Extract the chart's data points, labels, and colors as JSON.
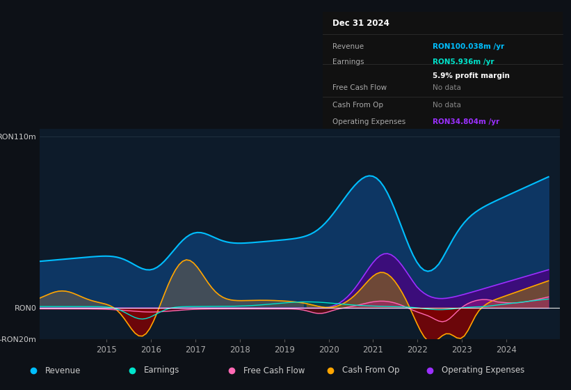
{
  "bg_color": "#0d1117",
  "plot_bg_color": "#0d1b2a",
  "title": "Dec 31 2024",
  "revenue_color": "#00bfff",
  "earnings_color": "#00e5cc",
  "fcf_color": "#ff69b4",
  "cashfromop_color": "#ffa500",
  "opex_color": "#9b30ff",
  "tooltip_bg": "#111111",
  "tooltip_title": "Dec 31 2024",
  "tooltip_rows": [
    {
      "label": "Revenue",
      "value": "RON100.038m /yr",
      "value_color": "#00bfff",
      "dimmed": false
    },
    {
      "label": "Earnings",
      "value": "RON5.936m /yr",
      "value_color": "#00e5cc",
      "dimmed": false
    },
    {
      "label": "",
      "value": "5.9% profit margin",
      "value_color": "#ffffff",
      "dimmed": false
    },
    {
      "label": "Free Cash Flow",
      "value": "No data",
      "value_color": "#888888",
      "dimmed": true
    },
    {
      "label": "Cash From Op",
      "value": "No data",
      "value_color": "#888888",
      "dimmed": true
    },
    {
      "label": "Operating Expenses",
      "value": "RON34.804m /yr",
      "value_color": "#9b30ff",
      "dimmed": false
    }
  ],
  "legend": [
    {
      "label": "Revenue",
      "color": "#00bfff"
    },
    {
      "label": "Earnings",
      "color": "#00e5cc"
    },
    {
      "label": "Free Cash Flow",
      "color": "#ff69b4"
    },
    {
      "label": "Cash From Op",
      "color": "#ffa500"
    },
    {
      "label": "Operating Expenses",
      "color": "#9b30ff"
    }
  ],
  "xlim": [
    2013.5,
    2025.2
  ],
  "ylim": [
    -20,
    115
  ],
  "ytick_vals": [
    -20,
    0,
    110
  ],
  "ytick_labels": [
    "-RON20m",
    "RON0",
    "RON110m"
  ],
  "xtick_vals": [
    2015,
    2016,
    2017,
    2018,
    2019,
    2020,
    2021,
    2022,
    2023,
    2024
  ]
}
